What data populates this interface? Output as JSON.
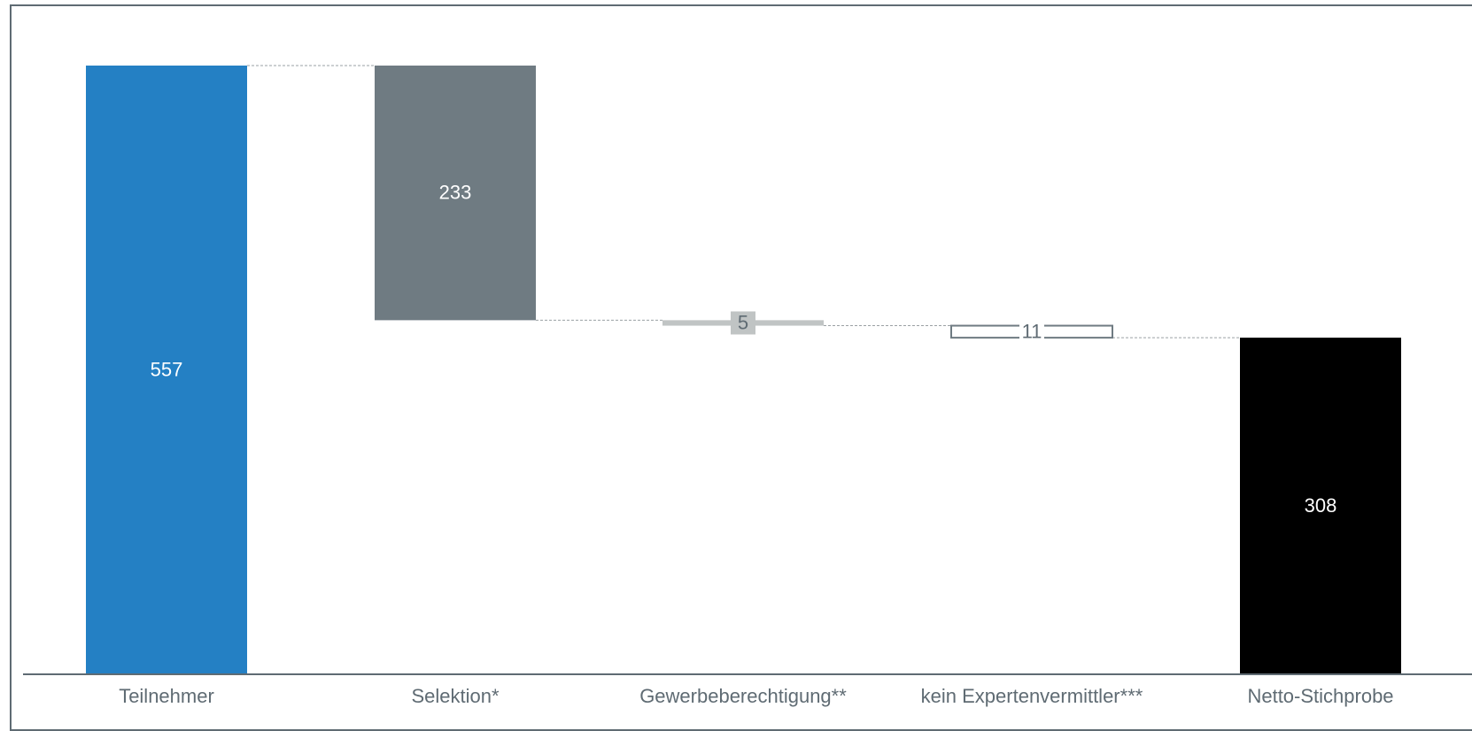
{
  "chart_data": {
    "type": "waterfall",
    "title": "",
    "xlabel": "",
    "ylabel": "",
    "ylim": [
      0,
      557
    ],
    "grid": false,
    "categories": [
      "Teilnehmer",
      "Selektion*",
      "Gewerbeberechtigung**",
      "kein Expertenvermittler***",
      "Netto-Stichprobe"
    ],
    "steps": [
      {
        "category": "Teilnehmer",
        "kind": "total",
        "value": 557,
        "label": "557",
        "color": "#2480c4"
      },
      {
        "category": "Selektion*",
        "kind": "decrease",
        "value": 233,
        "label": "233",
        "color": "#6f7b82"
      },
      {
        "category": "Gewerbeberechtigung**",
        "kind": "decrease",
        "value": 5,
        "label": "5",
        "color": "#c0c4c4"
      },
      {
        "category": "kein Expertenvermittler***",
        "kind": "decrease",
        "value": 11,
        "label": "11",
        "color": "#ffffff"
      },
      {
        "category": "Netto-Stichprobe",
        "kind": "total",
        "value": 308,
        "label": "308",
        "color": "#000000"
      }
    ],
    "colors": {
      "axis": "#5f6b73",
      "connector": "#9aa0a4",
      "tick_label": "#5f6b73"
    }
  }
}
